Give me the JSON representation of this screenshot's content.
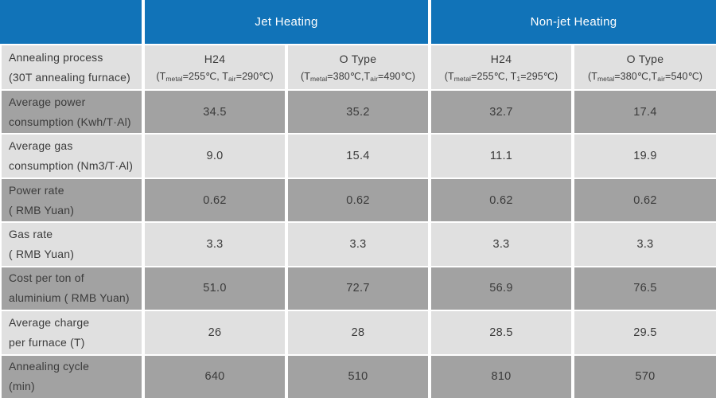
{
  "chart_data": {
    "type": "table",
    "column_groups": [
      {
        "label": "Jet Heating",
        "span": 2
      },
      {
        "label": "Non-jet Heating",
        "span": 2
      }
    ],
    "corner_label": {
      "line1": "Annealing process",
      "line2": "(30T annealing furnace)"
    },
    "columns": [
      {
        "group": "Jet Heating",
        "type": "H24",
        "spec": "(T_metal=255℃, T_air=290℃)"
      },
      {
        "group": "Jet Heating",
        "type": "O Type",
        "spec": "(T_metal=380℃,T_air=490℃)"
      },
      {
        "group": "Non-jet Heating",
        "type": "H24",
        "spec": "(T_metal=255℃, T_1=295℃)"
      },
      {
        "group": "Non-jet Heating",
        "type": "O Type",
        "spec": "(T_metal=380℃,T_air=540℃)"
      }
    ],
    "rows": [
      {
        "label_line1": "Average power",
        "label_line2": "consumption (Kwh/T·Al)",
        "values": [
          "34.5",
          "35.2",
          "32.7",
          "17.4"
        ],
        "shade": "dark"
      },
      {
        "label_line1": "Average gas",
        "label_line2": "consumption (Nm3/T·Al)",
        "values": [
          "9.0",
          "15.4",
          "11.1",
          "19.9"
        ],
        "shade": "light"
      },
      {
        "label_line1": "Power rate",
        "label_line2": "( RMB Yuan)",
        "values": [
          "0.62",
          "0.62",
          "0.62",
          "0.62"
        ],
        "shade": "dark"
      },
      {
        "label_line1": "Gas rate",
        "label_line2": "( RMB Yuan)",
        "values": [
          "3.3",
          "3.3",
          "3.3",
          "3.3"
        ],
        "shade": "light"
      },
      {
        "label_line1": "Cost per ton of",
        "label_line2": "aluminium ( RMB Yuan)",
        "values": [
          "51.0",
          "72.7",
          "56.9",
          "76.5"
        ],
        "shade": "dark"
      },
      {
        "label_line1": "Average charge",
        "label_line2": "per furnace (T)",
        "values": [
          "26",
          "28",
          "28.5",
          "29.5"
        ],
        "shade": "light"
      },
      {
        "label_line1": "Annealing cycle",
        "label_line2": "(min)",
        "values": [
          "640",
          "510",
          "810",
          "570"
        ],
        "shade": "dark"
      }
    ]
  },
  "colors": {
    "header_blue": "#1173B8",
    "row_dark": "#A2A2A2",
    "row_light": "#E0E0E0",
    "text_dark": "#3B3B3B",
    "header_text": "#FFFFFF",
    "gap_white": "#FFFFFF"
  }
}
